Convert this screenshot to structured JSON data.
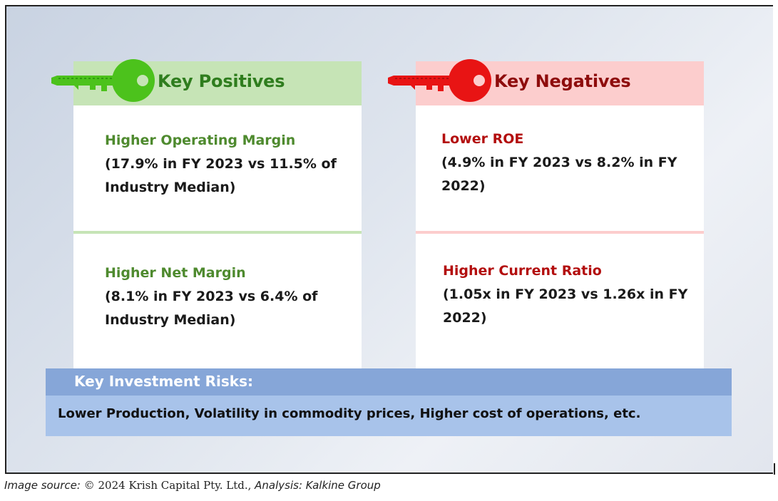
{
  "positives": {
    "title": "Key Positives",
    "items": [
      {
        "title": "Higher Operating Margin",
        "line1": "(17.9% in FY 2023 vs 11.5% of",
        "line2": "Industry Median)"
      },
      {
        "title": "Higher Net Margin",
        "line1": "(8.1% in FY 2023 vs 6.4% of",
        "line2": "Industry Median)"
      }
    ]
  },
  "negatives": {
    "title": "Key Negatives",
    "items": [
      {
        "title": "Lower ROE",
        "line1": "(4.9% in FY 2023 vs 8.2% in FY",
        "line2": "2022)"
      },
      {
        "title": "Higher Current Ratio",
        "line1": "(1.05x in FY 2023 vs 1.26x in FY",
        "line2": "2022)"
      }
    ]
  },
  "risks": {
    "title": "Key Investment Risks:",
    "text": "Lower Production, Volatility in commodity prices, Higher cost of operations, etc."
  },
  "caption": {
    "label": "Image source:",
    "source": "© 2024 Krish Capital Pty. Ltd.,",
    "analysis": "Analysis: Kalkine Group"
  },
  "colors": {
    "positive_accent": "#4cc21c",
    "negative_accent": "#e81414",
    "risk_header": "#86a6d8",
    "risk_body": "#a8c3ea"
  },
  "icons": {
    "positive": "key-icon",
    "negative": "key-icon"
  }
}
